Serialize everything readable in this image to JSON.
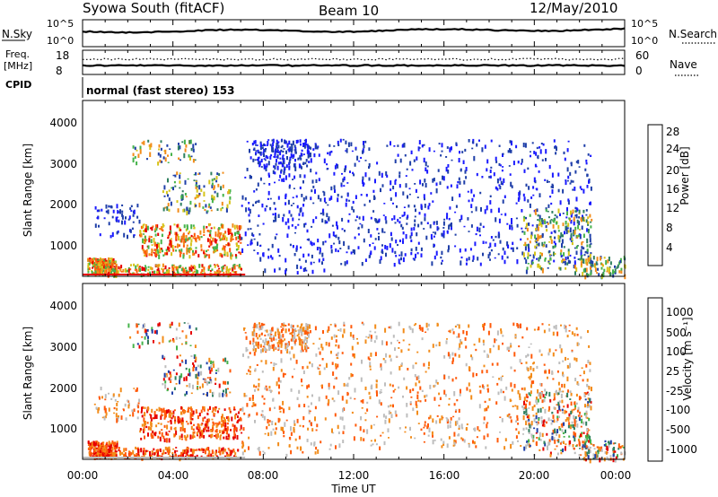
{
  "header": {
    "title": "Syowa South (fitACF)",
    "beam": "Beam 10",
    "date": "12/May/2010"
  },
  "strip_nsky": {
    "left_label": "N.Sky",
    "left_ticks": [
      "10^5",
      "10^0"
    ],
    "right_label": "N.Search",
    "right_ticks": [
      "10^5",
      "10^0"
    ]
  },
  "strip_freq": {
    "left_label_1": "Freq.",
    "left_label_2": "[MHz]",
    "left_ticks": [
      "18",
      "8"
    ],
    "right_label": "Nave",
    "right_ticks": [
      "60",
      "0"
    ]
  },
  "cpid": {
    "label": "CPID",
    "mode": "normal (fast stereo) 153"
  },
  "x_axis": {
    "label": "Time UT",
    "ticks": [
      "00:00",
      "04:00",
      "08:00",
      "12:00",
      "16:00",
      "20:00",
      "00:00"
    ]
  },
  "colors": {
    "power": [
      "#1a1aff",
      "#1f3fa8",
      "#2f7f5f",
      "#45b34a",
      "#d6c41a",
      "#f28c1a",
      "#ff5a0a",
      "#e60000"
    ],
    "velocity": [
      "#e60000",
      "#ff5a0a",
      "#f28c1a",
      "#bdbdbd",
      "#bdbdbd",
      "#45b34a",
      "#2f7f5f",
      "#1f3fa8"
    ]
  },
  "chart_data": [
    {
      "type": "heatmap",
      "panel": "power",
      "ylabel": "Slant Range [km]",
      "yticks": [
        "1000",
        "2000",
        "3000",
        "4000"
      ],
      "ylim": [
        180,
        4550
      ],
      "xlim_hours": [
        0,
        24
      ],
      "colorbar_label": "Power [dB]",
      "colorbar_ticks": [
        "4",
        "8",
        "12",
        "16",
        "20",
        "24",
        "28"
      ],
      "colorbar_range": [
        0,
        32
      ]
    },
    {
      "type": "heatmap",
      "panel": "velocity",
      "ylabel": "Slant Range [km]",
      "yticks": [
        "1000",
        "2000",
        "3000",
        "4000"
      ],
      "ylim": [
        180,
        4550
      ],
      "xlim_hours": [
        0,
        24
      ],
      "colorbar_label": "Velocity [m s⁻¹]",
      "colorbar_ticks": [
        "-1000",
        "-500",
        "-100",
        "-25",
        "25",
        "100",
        "500",
        "1000"
      ]
    }
  ]
}
